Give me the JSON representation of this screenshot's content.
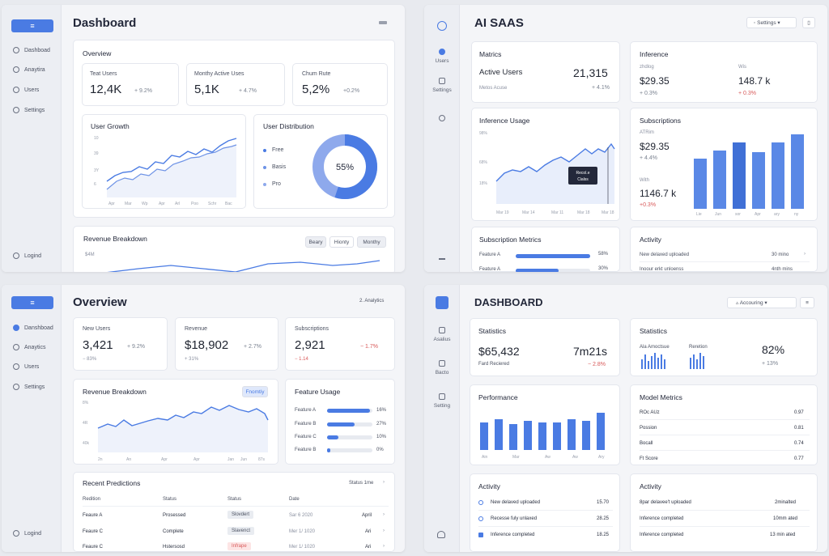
{
  "p1": {
    "menu_label": "≡",
    "nav": [
      "Dashboad",
      "Anaytira",
      "Users",
      "Settings"
    ],
    "logout": "Logind",
    "title": "Dashboard",
    "overview_title": "Overview",
    "stats": [
      {
        "label": "Teat Users",
        "value": "12,4K",
        "delta": "+ 9.2%"
      },
      {
        "label": "Monthy Active Uses",
        "value": "5,1K",
        "delta": "+ 4.7%"
      },
      {
        "label": "Chum Rute",
        "value": "5,2%",
        "delta": "+0.2%"
      }
    ],
    "growth_title": "User Growth",
    "growth_y": [
      "10",
      "39",
      "3Y",
      "6"
    ],
    "growth_x": [
      "Apr",
      "Mar",
      "Wp",
      "Apr",
      "Arl",
      "Poo",
      "Schr",
      "Bac"
    ],
    "dist_title": "User Distribution",
    "dist_legend": [
      "Free",
      "Basis",
      "Pro"
    ],
    "dist_value": "55%",
    "revenue_title": "Revenue Breakdown",
    "revenue_tabs": [
      "Beary",
      "Hionty",
      "Monthy"
    ],
    "revenue_y": "$4M"
  },
  "p2": {
    "nav": [
      "Users",
      "Settings"
    ],
    "title": "AI SAAS",
    "settings_label": "Settings",
    "metrics_title": "Matrics",
    "metrics_label": "Active Users",
    "metrics_value": "21,315",
    "metrics_sub": "Metos Acuse",
    "metrics_delta": "+ 4.1%",
    "inference_title": "Inference",
    "inf_left_label": "zhdlog",
    "inf_left_value": "$29.35",
    "inf_left_delta": "+ 0.3%",
    "inf_right_label": "Wis",
    "inf_right_value": "148.7 k",
    "inf_right_delta": "+ 0.3%",
    "usage_title": "Inference Usage",
    "usage_y": [
      "98%",
      "68%",
      "18%"
    ],
    "usage_x": [
      "Mar 19",
      "Mar 14",
      "Mar 11",
      "Mar 18",
      "Mar 18"
    ],
    "tooltip": [
      "Recol.e",
      "Cialss"
    ],
    "subs_title": "Subscriptions",
    "subs_a_label": "ATRim",
    "subs_a_value": "$29.35",
    "subs_a_delta": "+ 4.4%",
    "subs_b_label": "With",
    "subs_b_value": "1146.7 k",
    "subs_b_delta": "+0.3%",
    "subs_x": [
      "Lie",
      "Jun",
      "sor",
      "Apr",
      "ary",
      "ny"
    ],
    "subm_title": "Subscription Metrics",
    "subm_rows": [
      {
        "label": "Feature A",
        "value": "58%"
      },
      {
        "label": "Feature A",
        "value": "30%"
      }
    ],
    "activity_title": "Activity",
    "activity_rows": [
      {
        "label": "New delaxed uploaded",
        "time": "30 mino"
      },
      {
        "label": "Inoour erkt unloenss",
        "time": "4nth mins"
      }
    ]
  },
  "p3": {
    "menu_label": "≡",
    "nav": [
      "Danshboad",
      "Anaytics",
      "Users",
      "Settings"
    ],
    "logout": "Logind",
    "title": "Overview",
    "crumb": "2. Analytics",
    "stats": [
      {
        "label": "New Users",
        "value": "3,421",
        "delta": "+ 9.2%",
        "sub": "− 83%"
      },
      {
        "label": "Revenue",
        "value": "$18,902",
        "delta": "+ 2.7%",
        "sub": "+ 31%"
      },
      {
        "label": "Subscriptions",
        "value": "2,921",
        "delta": "− 1.7%",
        "sub": "− 1.14"
      }
    ],
    "rev_title": "Revenue Breakdown",
    "rev_tab": "Fnomtiy",
    "rev_y": [
      "8%",
      "4R",
      "40k"
    ],
    "rev_x": [
      "2n",
      "An",
      "Apr",
      "Apr",
      "Jan",
      "Jun",
      "87s"
    ],
    "feature_title": "Feature Usage",
    "features": [
      {
        "label": "Feature A",
        "value": "16%",
        "pct": 0.95
      },
      {
        "label": "Feature B",
        "value": "27%",
        "pct": 0.6
      },
      {
        "label": "Feature C",
        "value": "10%",
        "pct": 0.25
      },
      {
        "label": "Feature B",
        "value": "0%",
        "pct": 0.08
      }
    ],
    "pred_title": "Recent Predictions",
    "pred_status_link": "Status 1me",
    "pred_headers": [
      "Redition",
      "Status",
      "Status",
      "Date"
    ],
    "pred_rows": [
      {
        "name": "Feaure A",
        "status": "Prosessed",
        "badge": "Slovdert",
        "date": "Sar 6 2020",
        "month": "April"
      },
      {
        "name": "Feaure C",
        "status": "Complete",
        "badge": "Slavenct",
        "date": "Mer 1/ 1020",
        "month": "Ari"
      },
      {
        "name": "Feaure C",
        "status": "Hstersosd",
        "badge": "Infrape",
        "date": "Mer 1/ 1020",
        "month": "Ari"
      }
    ]
  },
  "p4": {
    "nav": [
      "Asalius",
      "Bacto",
      "Setting"
    ],
    "title": "DASHBOARD",
    "account_label": "Accouring",
    "stats_title": "Statistics",
    "stats_value": "$65,432",
    "stats_time": "7m21s",
    "stats_sub": "Fard Reciered",
    "stats_delta": "− 2.8%",
    "stats2_title": "Statistics",
    "stats2_labels": [
      "Ala Amoctsue",
      "Reretion"
    ],
    "stats2_value": "82%",
    "stats2_delta": "+ 13%",
    "perf_title": "Performance",
    "perf_x": [
      "Ain",
      "Mar",
      "Aw",
      "Aw",
      "Ary"
    ],
    "model_title": "Model Metrics",
    "model_rows": [
      {
        "label": "ROc AUz",
        "value": "0.97"
      },
      {
        "label": "Possion",
        "value": "0.81"
      },
      {
        "label": "Bocall",
        "value": "0.74"
      },
      {
        "label": "Ft Score",
        "value": "0.77"
      }
    ],
    "act1_title": "Activity",
    "act1_rows": [
      {
        "label": "New delaved uploaded",
        "value": "15.70"
      },
      {
        "label": "Recesse fuly unlaxed",
        "value": "28.25"
      },
      {
        "label": "Inference completed",
        "value": "18.25"
      }
    ],
    "act2_title": "Activity",
    "act2_rows": [
      {
        "label": "8par delavee't uploaded",
        "value": "2minalted"
      },
      {
        "label": "Inference completed",
        "value": "10mm ated"
      },
      {
        "label": "Inference completed",
        "value": "13 min ated"
      }
    ]
  },
  "colors": {
    "accent": "#4a7be3",
    "negative": "#d85a5a",
    "donut_light": "#8ea9ec"
  }
}
